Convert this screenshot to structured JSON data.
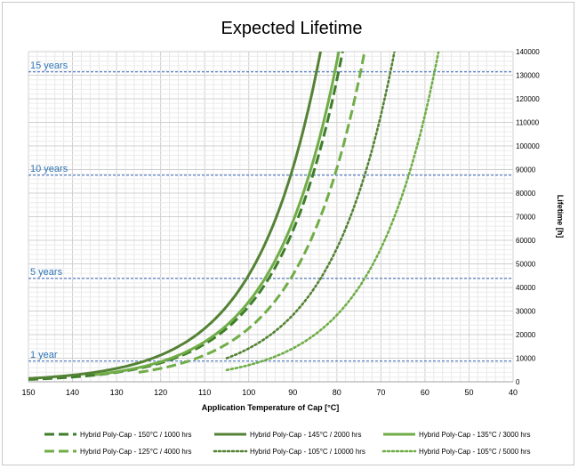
{
  "chart_data": {
    "type": "line",
    "title": "Expected Lifetime",
    "xlabel": "Application Temperature of Cap [°C]",
    "ylabel": "Lifetime [h]",
    "xlim": [
      150,
      40
    ],
    "ylim": [
      0,
      140000
    ],
    "x_reversed": true,
    "y_axis_side": "right",
    "grid": true,
    "legend_position": "bottom",
    "x_ticks": [
      150,
      140,
      130,
      120,
      110,
      100,
      90,
      80,
      70,
      60,
      50,
      40
    ],
    "y_ticks": [
      0,
      10000,
      20000,
      30000,
      40000,
      50000,
      60000,
      70000,
      80000,
      90000,
      100000,
      110000,
      120000,
      130000,
      140000
    ],
    "reference_lines": [
      {
        "label": "1 year",
        "y": 8760
      },
      {
        "label": "5 years",
        "y": 43800
      },
      {
        "label": "10 years",
        "y": 87600
      },
      {
        "label": "15 years",
        "y": 131400
      }
    ],
    "series": [
      {
        "name": "Hybrid Poly-Cap - 150°C / 1000 hrs",
        "rated_temp": 150,
        "rated_hours": 1000,
        "color": "#3e7d2a",
        "dash": "long-dash",
        "x_start": 150
      },
      {
        "name": "Hybrid Poly-Cap - 145°C / 2000 hrs",
        "rated_temp": 145,
        "rated_hours": 2000,
        "color": "#548235",
        "dash": "solid",
        "x_start": 150
      },
      {
        "name": "Hybrid Poly-Cap - 135°C / 3000 hrs",
        "rated_temp": 135,
        "rated_hours": 3000,
        "color": "#70ad47",
        "dash": "solid",
        "x_start": 135
      },
      {
        "name": "Hybrid Poly-Cap - 125°C / 4000 hrs",
        "rated_temp": 125,
        "rated_hours": 4000,
        "color": "#70ad47",
        "dash": "long-dash",
        "x_start": 125
      },
      {
        "name": "Hybrid Poly-Cap - 105°C / 10000 hrs",
        "rated_temp": 105,
        "rated_hours": 10000,
        "color": "#548235",
        "dash": "dot",
        "x_start": 105
      },
      {
        "name": "Hybrid Poly-Cap - 105°C / 5000 hrs",
        "rated_temp": 105,
        "rated_hours": 5000,
        "color": "#70ad47",
        "dash": "dot",
        "x_start": 105
      }
    ]
  }
}
